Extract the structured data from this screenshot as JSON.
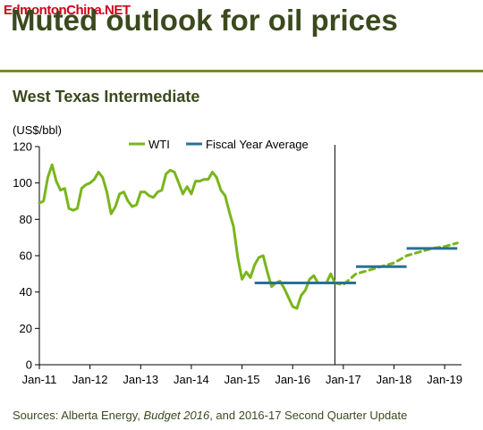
{
  "watermark": "EdmontonChina.NET",
  "header": {
    "title": "Muted outlook for oil prices"
  },
  "source_note": {
    "prefix": "Sources: Alberta Energy, ",
    "italic": "Budget 2016",
    "suffix": ", and 2016-17 Second Quarter Update"
  },
  "colors": {
    "wti": "#7ab51d",
    "fiscal_avg": "#2a6f97",
    "title": "#3b4a1e",
    "rule": "#7a8a2a"
  },
  "chart_data": {
    "type": "line",
    "title": "West Texas Intermediate",
    "ylabel": "(US$/bbl)",
    "xlabel": "",
    "ylim": [
      0,
      120
    ],
    "yticks": [
      0,
      20,
      40,
      60,
      80,
      100,
      120
    ],
    "xticks": [
      "Jan-11",
      "Jan-12",
      "Jan-13",
      "Jan-14",
      "Jan-15",
      "Jan-16",
      "Jan-17",
      "Jan-18",
      "Jan-19"
    ],
    "xrange": [
      "2011-01",
      "2019-05"
    ],
    "vertical_line_at": "2016-11",
    "legend": {
      "placement": "top-center",
      "entries": [
        "WTI",
        "Fiscal Year Average"
      ]
    },
    "series": [
      {
        "name": "WTI",
        "style": "solid",
        "points": [
          [
            "2011-01",
            89
          ],
          [
            "2011-02",
            90
          ],
          [
            "2011-03",
            103
          ],
          [
            "2011-04",
            110
          ],
          [
            "2011-05",
            101
          ],
          [
            "2011-06",
            96
          ],
          [
            "2011-07",
            97
          ],
          [
            "2011-08",
            86
          ],
          [
            "2011-09",
            85
          ],
          [
            "2011-10",
            86
          ],
          [
            "2011-11",
            97
          ],
          [
            "2011-12",
            99
          ],
          [
            "2012-01",
            100
          ],
          [
            "2012-02",
            102
          ],
          [
            "2012-03",
            106
          ],
          [
            "2012-04",
            103
          ],
          [
            "2012-05",
            95
          ],
          [
            "2012-06",
            83
          ],
          [
            "2012-07",
            87
          ],
          [
            "2012-08",
            94
          ],
          [
            "2012-09",
            95
          ],
          [
            "2012-10",
            90
          ],
          [
            "2012-11",
            87
          ],
          [
            "2012-12",
            88
          ],
          [
            "2013-01",
            95
          ],
          [
            "2013-02",
            95
          ],
          [
            "2013-03",
            93
          ],
          [
            "2013-04",
            92
          ],
          [
            "2013-05",
            95
          ],
          [
            "2013-06",
            96
          ],
          [
            "2013-07",
            105
          ],
          [
            "2013-08",
            107
          ],
          [
            "2013-09",
            106
          ],
          [
            "2013-10",
            100
          ],
          [
            "2013-11",
            94
          ],
          [
            "2013-12",
            98
          ],
          [
            "2014-01",
            94
          ],
          [
            "2014-02",
            101
          ],
          [
            "2014-03",
            101
          ],
          [
            "2014-04",
            102
          ],
          [
            "2014-05",
            102
          ],
          [
            "2014-06",
            106
          ],
          [
            "2014-07",
            103
          ],
          [
            "2014-08",
            96
          ],
          [
            "2014-09",
            93
          ],
          [
            "2014-10",
            84
          ],
          [
            "2014-11",
            76
          ],
          [
            "2014-12",
            59
          ],
          [
            "2015-01",
            47
          ],
          [
            "2015-02",
            51
          ],
          [
            "2015-03",
            48
          ],
          [
            "2015-04",
            55
          ],
          [
            "2015-05",
            59
          ],
          [
            "2015-06",
            60
          ],
          [
            "2015-07",
            51
          ],
          [
            "2015-08",
            43
          ],
          [
            "2015-09",
            45
          ],
          [
            "2015-10",
            46
          ],
          [
            "2015-11",
            42
          ],
          [
            "2015-12",
            37
          ],
          [
            "2016-01",
            32
          ],
          [
            "2016-02",
            31
          ],
          [
            "2016-03",
            38
          ],
          [
            "2016-04",
            41
          ],
          [
            "2016-05",
            47
          ],
          [
            "2016-06",
            49
          ],
          [
            "2016-07",
            45
          ],
          [
            "2016-08",
            45
          ],
          [
            "2016-09",
            45
          ],
          [
            "2016-10",
            50
          ],
          [
            "2016-11",
            45
          ]
        ]
      },
      {
        "name": "WTI",
        "style": "dashed",
        "points": [
          [
            "2016-11",
            45
          ],
          [
            "2017-01",
            44
          ],
          [
            "2017-04",
            50
          ],
          [
            "2017-07",
            52
          ],
          [
            "2017-10",
            54
          ],
          [
            "2018-01",
            56
          ],
          [
            "2018-04",
            60
          ],
          [
            "2018-07",
            62
          ],
          [
            "2018-10",
            64
          ],
          [
            "2019-01",
            65
          ],
          [
            "2019-04",
            67
          ]
        ]
      },
      {
        "name": "Fiscal Year Average",
        "style": "steps",
        "segments": [
          {
            "from": "2015-04",
            "to": "2016-03",
            "value": 45
          },
          {
            "from": "2016-04",
            "to": "2017-03",
            "value": 45
          },
          {
            "from": "2017-04",
            "to": "2018-03",
            "value": 54
          },
          {
            "from": "2018-04",
            "to": "2019-03",
            "value": 64
          }
        ]
      }
    ]
  }
}
